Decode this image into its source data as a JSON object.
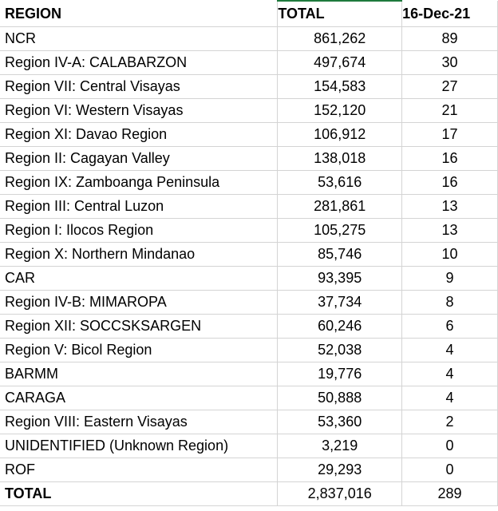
{
  "table": {
    "headers": [
      "REGION",
      "TOTAL",
      "16-Dec-21"
    ],
    "rows": [
      {
        "region": "NCR",
        "total": "861,262",
        "count": "89"
      },
      {
        "region": "Region IV-A: CALABARZON",
        "total": "497,674",
        "count": "30"
      },
      {
        "region": "Region VII: Central Visayas",
        "total": "154,583",
        "count": "27"
      },
      {
        "region": "Region VI: Western Visayas",
        "total": "152,120",
        "count": "21"
      },
      {
        "region": "Region XI: Davao Region",
        "total": "106,912",
        "count": "17"
      },
      {
        "region": "Region II: Cagayan Valley",
        "total": "138,018",
        "count": "16"
      },
      {
        "region": "Region IX: Zamboanga Peninsula",
        "total": "53,616",
        "count": "16"
      },
      {
        "region": "Region III: Central Luzon",
        "total": "281,861",
        "count": "13"
      },
      {
        "region": "Region I: Ilocos Region",
        "total": "105,275",
        "count": "13"
      },
      {
        "region": "Region X: Northern Mindanao",
        "total": "85,746",
        "count": "10"
      },
      {
        "region": "CAR",
        "total": "93,395",
        "count": "9"
      },
      {
        "region": "Region IV-B: MIMAROPA",
        "total": "37,734",
        "count": "8"
      },
      {
        "region": "Region XII: SOCCSKSARGEN",
        "total": "60,246",
        "count": "6"
      },
      {
        "region": "Region V: Bicol Region",
        "total": "52,038",
        "count": "4"
      },
      {
        "region": "BARMM",
        "total": "19,776",
        "count": "4"
      },
      {
        "region": "CARAGA",
        "total": "50,888",
        "count": "4"
      },
      {
        "region": "Region VIII: Eastern Visayas",
        "total": "53,360",
        "count": "2"
      },
      {
        "region": "UNIDENTIFIED (Unknown Region)",
        "total": "3,219",
        "count": "0"
      },
      {
        "region": "ROF",
        "total": "29,293",
        "count": "0"
      }
    ],
    "total_row": {
      "region": "TOTAL",
      "total": "2,837,016",
      "count": "289"
    }
  },
  "colors": {
    "grid": "#d4d4d4",
    "selection": "#1e7a3c"
  }
}
